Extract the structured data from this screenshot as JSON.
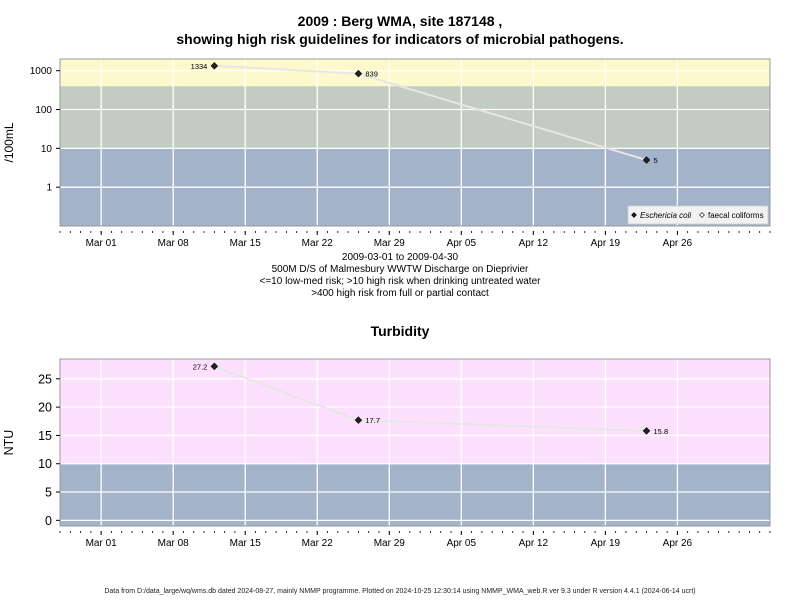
{
  "chart_data": [
    {
      "type": "line",
      "title": "2009 : Berg WMA, site 187148 ,",
      "subtitle": "showing high risk guidelines for indicators of microbial pathogens.",
      "ylabel": "/100mL",
      "y_scale": "log",
      "y_ticks": [
        1,
        10,
        100,
        1000
      ],
      "y_tick_labels": [
        "1",
        "10",
        "100",
        "1000"
      ],
      "ylim": [
        0.1,
        2000
      ],
      "xlim": [
        "2009-02-25",
        "2009-05-05"
      ],
      "x_ticks": [
        "2009-03-01",
        "2009-03-08",
        "2009-03-15",
        "2009-03-22",
        "2009-03-29",
        "2009-04-05",
        "2009-04-12",
        "2009-04-19",
        "2009-04-26"
      ],
      "x_tick_labels": [
        "Mar 01",
        "Mar 08",
        "Mar 15",
        "Mar 22",
        "Mar 29",
        "Apr 05",
        "Apr 12",
        "Apr 19",
        "Apr 26"
      ],
      "bands": [
        {
          "from": 0.1,
          "to": 10,
          "color": "#a3b3ca"
        },
        {
          "from": 10,
          "to": 400,
          "color": "#c3ccc0"
        },
        {
          "from": 400,
          "to": 2000,
          "color": "#fdf9cd"
        }
      ],
      "series": [
        {
          "name": "Eschericia coli",
          "marker": "filled-diamond",
          "x": [
            "2009-03-12",
            "2009-03-26",
            "2009-04-23"
          ],
          "y": [
            1334,
            839,
            5
          ],
          "labels": [
            "1334",
            "839",
            "5"
          ]
        },
        {
          "name": "faecal coliforms",
          "marker": "open-diamond",
          "x": [],
          "y": [],
          "labels": []
        }
      ],
      "legend_position": "bottom-right",
      "grid": true,
      "line_color": "#e6e6e6",
      "notes": [
        "2009-03-01 to 2009-04-30",
        "500M D/S of Malmesbury WWTW Discharge on Dieprivier",
        "<=10 low-med risk; >10 high risk when drinking untreated water",
        ">400 high risk from full or partial contact"
      ]
    },
    {
      "type": "line",
      "title": "Turbidity",
      "ylabel": "NTU",
      "ylim": [
        -1,
        28.5
      ],
      "y_ticks": [
        0,
        5,
        10,
        15,
        20,
        25
      ],
      "y_tick_labels": [
        "0",
        "5",
        "10",
        "15",
        "20",
        "25"
      ],
      "xlim": [
        "2009-02-25",
        "2009-05-05"
      ],
      "x_ticks": [
        "2009-03-01",
        "2009-03-08",
        "2009-03-15",
        "2009-03-22",
        "2009-03-29",
        "2009-04-05",
        "2009-04-12",
        "2009-04-19",
        "2009-04-26"
      ],
      "x_tick_labels": [
        "Mar 01",
        "Mar 08",
        "Mar 15",
        "Mar 22",
        "Mar 29",
        "Apr 05",
        "Apr 12",
        "Apr 19",
        "Apr 26"
      ],
      "bands": [
        {
          "from": -1,
          "to": 10,
          "color": "#a3b3ca"
        },
        {
          "from": 10,
          "to": 28.5,
          "color": "#fde0fd"
        }
      ],
      "series": [
        {
          "name": "",
          "marker": "filled-diamond",
          "x": [
            "2009-03-12",
            "2009-03-26",
            "2009-04-23"
          ],
          "y": [
            27.2,
            17.7,
            15.8
          ],
          "labels": [
            "27.2",
            "17.7",
            "15.8"
          ]
        }
      ],
      "grid": true,
      "line_color": "#e6e6e6"
    }
  ],
  "footer": "Data from D:/data_large/wq/wms.db dated 2024-08-27, mainly NMMP programme. Plotted on 2024-10-25 12:30:14 using NMMP_WMA_web.R ver 9.3 under R version 4.4.1 (2024-06-14 ucrt)"
}
